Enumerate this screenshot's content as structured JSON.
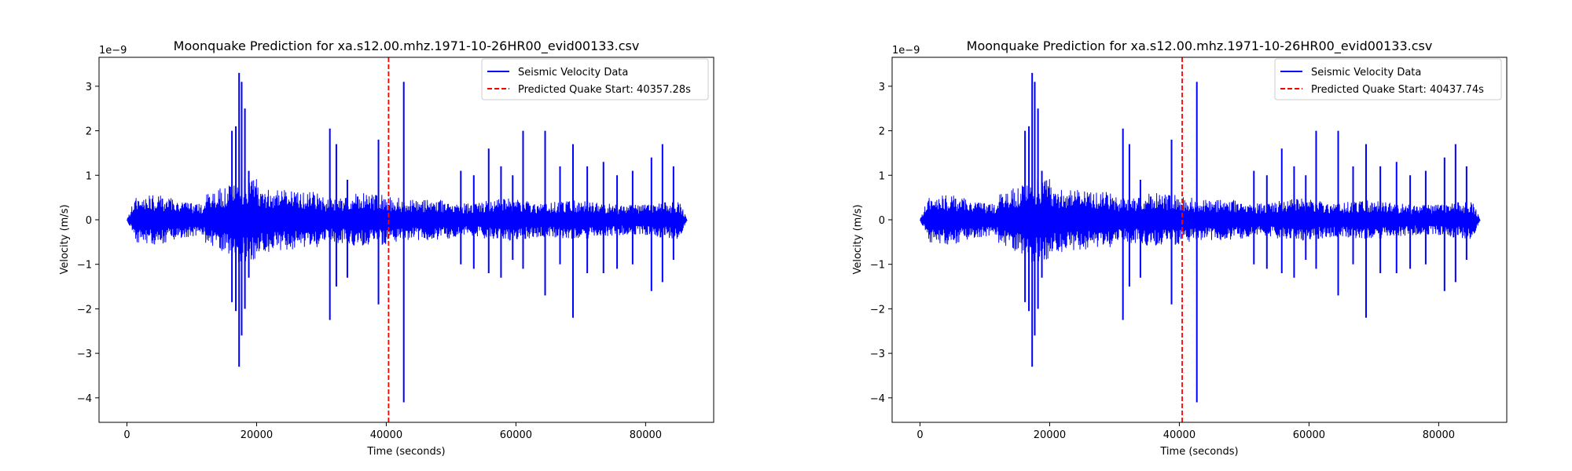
{
  "chart_data": [
    {
      "type": "line",
      "title": "Moonquake Prediction for xa.s12.00.mhz.1971-10-26HR00_evid00133.csv",
      "xlabel": "Time (seconds)",
      "ylabel": "Velocity (m/s)",
      "y_offset_label": "1e−9",
      "xlim": [
        -4300,
        90500
      ],
      "ylim": [
        -4.55,
        3.65
      ],
      "xticks": [
        0,
        20000,
        40000,
        60000,
        80000
      ],
      "yticks": [
        -4,
        -3,
        -2,
        -1,
        0,
        1,
        2,
        3
      ],
      "legend_position": "top-right",
      "grid": false,
      "series": [
        {
          "name": "Seismic Velocity Data",
          "color": "#0000ff",
          "style": "solid",
          "x_range": [
            0,
            86400
          ],
          "spikes": [
            {
              "x": 16200,
              "max": 2.0,
              "min": -1.85
            },
            {
              "x": 16800,
              "max": 2.1,
              "min": -2.05
            },
            {
              "x": 17300,
              "max": 3.3,
              "min": -3.3
            },
            {
              "x": 17700,
              "max": 3.1,
              "min": -2.6
            },
            {
              "x": 18200,
              "max": 2.5,
              "min": -2.0
            },
            {
              "x": 18800,
              "max": 1.1,
              "min": -1.3
            },
            {
              "x": 31300,
              "max": 2.05,
              "min": -2.25
            },
            {
              "x": 32300,
              "max": 1.7,
              "min": -1.5
            },
            {
              "x": 34000,
              "max": 0.9,
              "min": -1.3
            },
            {
              "x": 38800,
              "max": 1.8,
              "min": -1.9
            },
            {
              "x": 42700,
              "max": 3.1,
              "min": -4.1
            },
            {
              "x": 51500,
              "max": 1.1,
              "min": -1.0
            },
            {
              "x": 53500,
              "max": 1.0,
              "min": -1.1
            },
            {
              "x": 55800,
              "max": 1.6,
              "min": -1.2
            },
            {
              "x": 57700,
              "max": 1.2,
              "min": -1.3
            },
            {
              "x": 59500,
              "max": 1.0,
              "min": -0.9
            },
            {
              "x": 61100,
              "max": 2.0,
              "min": -1.1
            },
            {
              "x": 64500,
              "max": 2.0,
              "min": -1.7
            },
            {
              "x": 66800,
              "max": 1.2,
              "min": -1.0
            },
            {
              "x": 68800,
              "max": 1.7,
              "min": -2.2
            },
            {
              "x": 71000,
              "max": 1.2,
              "min": -1.2
            },
            {
              "x": 73500,
              "max": 1.3,
              "min": -1.2
            },
            {
              "x": 75600,
              "max": 1.0,
              "min": -1.1
            },
            {
              "x": 78000,
              "max": 1.1,
              "min": -1.0
            },
            {
              "x": 80900,
              "max": 1.4,
              "min": -1.6
            },
            {
              "x": 82600,
              "max": 1.7,
              "min": -1.4
            },
            {
              "x": 84300,
              "max": 1.2,
              "min": -0.9
            }
          ]
        },
        {
          "name": "Predicted Quake Start: 40357.28s",
          "color": "#ff0000",
          "style": "dashed",
          "x": 40357.28
        }
      ]
    },
    {
      "type": "line",
      "title": "Moonquake Prediction for xa.s12.00.mhz.1971-10-26HR00_evid00133.csv",
      "xlabel": "Time (seconds)",
      "ylabel": "Velocity (m/s)",
      "y_offset_label": "1e−9",
      "xlim": [
        -4300,
        90500
      ],
      "ylim": [
        -4.55,
        3.65
      ],
      "xticks": [
        0,
        20000,
        40000,
        60000,
        80000
      ],
      "yticks": [
        -4,
        -3,
        -2,
        -1,
        0,
        1,
        2,
        3
      ],
      "legend_position": "top-right",
      "grid": false,
      "series": [
        {
          "name": "Seismic Velocity Data",
          "color": "#0000ff",
          "style": "solid",
          "x_range": [
            0,
            86400
          ],
          "spikes": [
            {
              "x": 16200,
              "max": 2.0,
              "min": -1.85
            },
            {
              "x": 16800,
              "max": 2.1,
              "min": -2.05
            },
            {
              "x": 17300,
              "max": 3.3,
              "min": -3.3
            },
            {
              "x": 17700,
              "max": 3.1,
              "min": -2.6
            },
            {
              "x": 18200,
              "max": 2.5,
              "min": -2.0
            },
            {
              "x": 18800,
              "max": 1.1,
              "min": -1.3
            },
            {
              "x": 31300,
              "max": 2.05,
              "min": -2.25
            },
            {
              "x": 32300,
              "max": 1.7,
              "min": -1.5
            },
            {
              "x": 34000,
              "max": 0.9,
              "min": -1.3
            },
            {
              "x": 38800,
              "max": 1.8,
              "min": -1.9
            },
            {
              "x": 42700,
              "max": 3.1,
              "min": -4.1
            },
            {
              "x": 51500,
              "max": 1.1,
              "min": -1.0
            },
            {
              "x": 53500,
              "max": 1.0,
              "min": -1.1
            },
            {
              "x": 55800,
              "max": 1.6,
              "min": -1.2
            },
            {
              "x": 57700,
              "max": 1.2,
              "min": -1.3
            },
            {
              "x": 59500,
              "max": 1.0,
              "min": -0.9
            },
            {
              "x": 61100,
              "max": 2.0,
              "min": -1.1
            },
            {
              "x": 64500,
              "max": 2.0,
              "min": -1.7
            },
            {
              "x": 66800,
              "max": 1.2,
              "min": -1.0
            },
            {
              "x": 68800,
              "max": 1.7,
              "min": -2.2
            },
            {
              "x": 71000,
              "max": 1.2,
              "min": -1.2
            },
            {
              "x": 73500,
              "max": 1.3,
              "min": -1.2
            },
            {
              "x": 75600,
              "max": 1.0,
              "min": -1.1
            },
            {
              "x": 78000,
              "max": 1.1,
              "min": -1.0
            },
            {
              "x": 80900,
              "max": 1.4,
              "min": -1.6
            },
            {
              "x": 82600,
              "max": 1.7,
              "min": -1.4
            },
            {
              "x": 84300,
              "max": 1.2,
              "min": -0.9
            }
          ]
        },
        {
          "name": "Predicted Quake Start: 40437.74s",
          "color": "#ff0000",
          "style": "dashed",
          "x": 40437.74
        }
      ]
    }
  ]
}
